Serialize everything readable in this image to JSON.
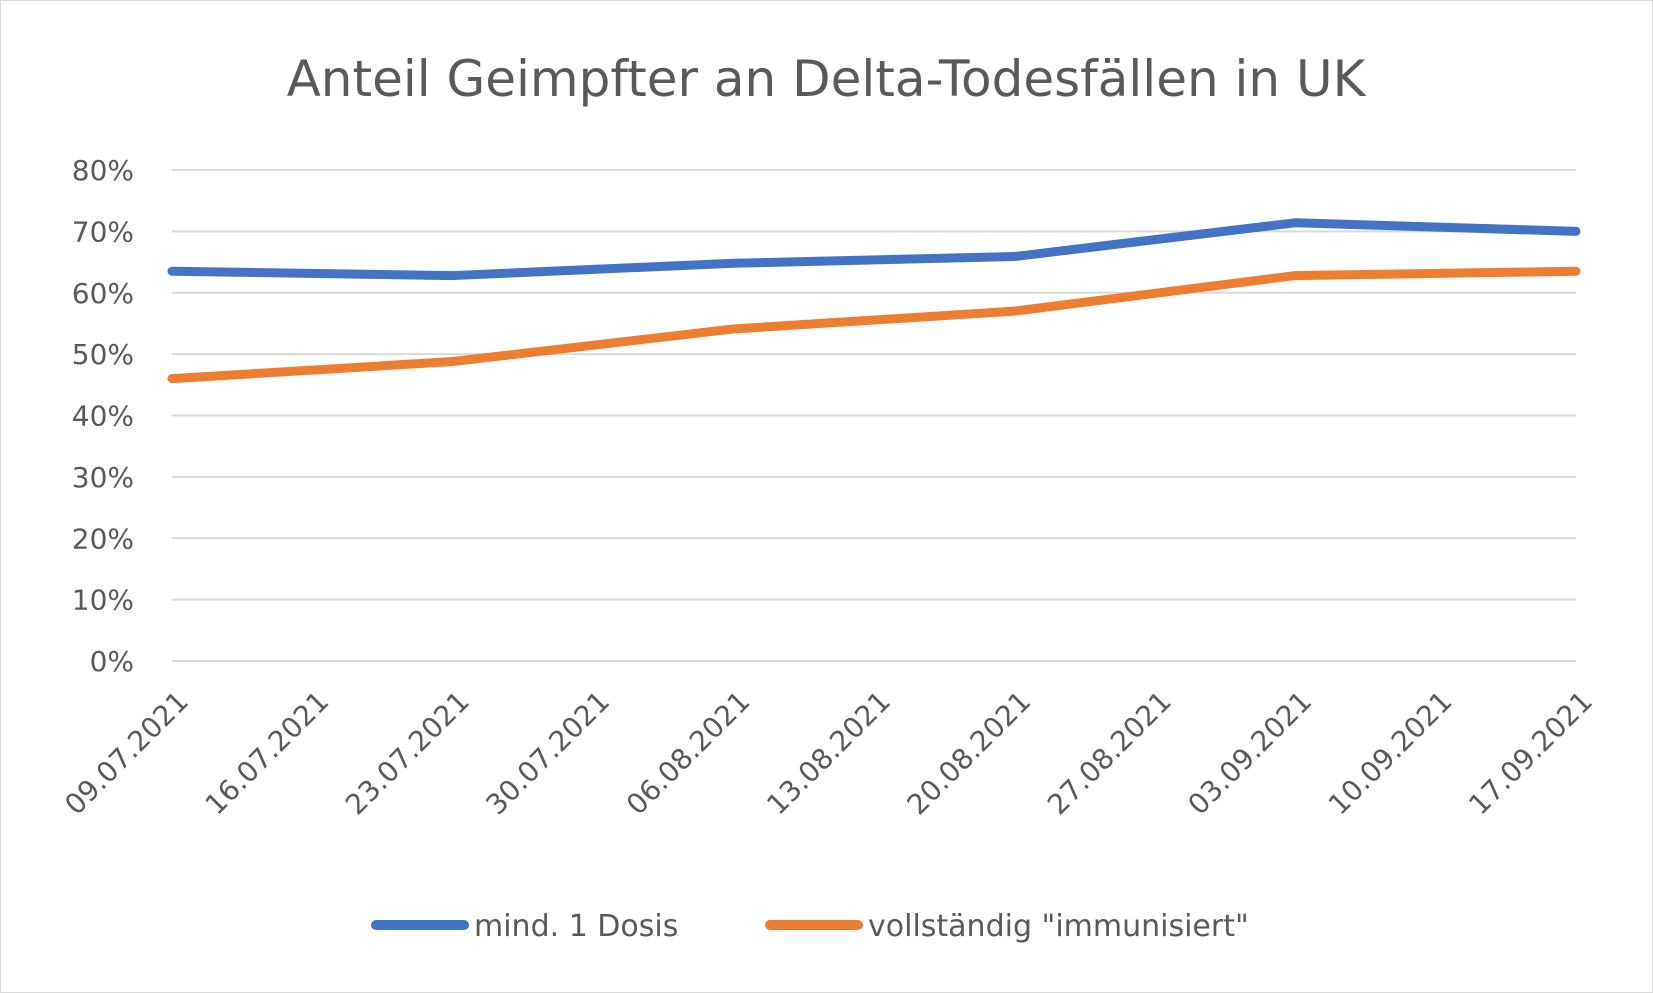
{
  "colors": {
    "series_1": "#4472c4",
    "series_2": "#ed7d31",
    "grid": "#d9d9d9",
    "text": "#595959"
  },
  "chart_data": {
    "type": "line",
    "title": "Anteil Geimpfter an Delta-Todesfällen in UK",
    "xlabel": "",
    "ylabel": "",
    "categories": [
      "09.07.2021",
      "16.07.2021",
      "23.07.2021",
      "30.07.2021",
      "06.08.2021",
      "13.08.2021",
      "20.08.2021",
      "27.08.2021",
      "03.09.2021",
      "10.09.2021",
      "17.09.2021"
    ],
    "y_tick_labels": [
      "0%",
      "10%",
      "20%",
      "30%",
      "40%",
      "50%",
      "60%",
      "70%",
      "80%"
    ],
    "ylim": [
      0,
      0.8
    ],
    "y_tick_step": 0.1,
    "grid": true,
    "legend_position": "bottom",
    "series": [
      {
        "name": "mind. 1 Dosis",
        "color": "#4472c4",
        "points": [
          {
            "x": "09.07.2021",
            "y": 0.635
          },
          {
            "x": "23.07.2021",
            "y": 0.628
          },
          {
            "x": "06.08.2021",
            "y": 0.648
          },
          {
            "x": "20.08.2021",
            "y": 0.659
          },
          {
            "x": "03.09.2021",
            "y": 0.714
          },
          {
            "x": "17.09.2021",
            "y": 0.7
          }
        ]
      },
      {
        "name": "vollständig \"immunisiert\"",
        "color": "#ed7d31",
        "points": [
          {
            "x": "09.07.2021",
            "y": 0.46
          },
          {
            "x": "23.07.2021",
            "y": 0.488
          },
          {
            "x": "06.08.2021",
            "y": 0.541
          },
          {
            "x": "20.08.2021",
            "y": 0.57
          },
          {
            "x": "03.09.2021",
            "y": 0.628
          },
          {
            "x": "17.09.2021",
            "y": 0.635
          }
        ]
      }
    ]
  }
}
